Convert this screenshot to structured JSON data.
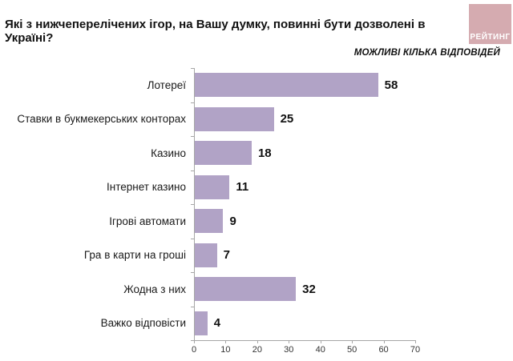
{
  "header": {
    "title": "Які з нижчеперелічених ігор, на Вашу думку, повинні бути дозволені в Україні?",
    "subtitle": "МОЖЛИВІ КІЛЬКА ВІДПОВІДЕЙ",
    "logo_text": "РЕЙТИНГ"
  },
  "colors": {
    "bar": "#b1a3c6",
    "axis": "#a6a6a6",
    "logo_background": "#d5abb0",
    "logo_text": "#ffffff"
  },
  "chart_data": {
    "type": "bar",
    "orientation": "horizontal",
    "title": "Які з нижчеперелічених ігор, на Вашу думку, повинні бути дозволені в Україні?",
    "subtitle": "МОЖЛИВІ КІЛЬКА ВІДПОВІДЕЙ",
    "categories": [
      "Лотереї",
      "Ставки в букмекерських конторах",
      "Казино",
      "Інтернет казино",
      "Ігрові автомати",
      "Гра в карти на гроші",
      "Жодна з них",
      "Важко відповісти"
    ],
    "values": [
      58,
      25,
      18,
      11,
      9,
      7,
      32,
      4
    ],
    "xlabel": "",
    "ylabel": "",
    "xlim": [
      0,
      70
    ],
    "x_ticks": [
      0,
      10,
      20,
      30,
      40,
      50,
      60,
      70
    ],
    "grid": false,
    "legend": false,
    "value_labels": true,
    "bar_color": "#b1a3c6"
  }
}
